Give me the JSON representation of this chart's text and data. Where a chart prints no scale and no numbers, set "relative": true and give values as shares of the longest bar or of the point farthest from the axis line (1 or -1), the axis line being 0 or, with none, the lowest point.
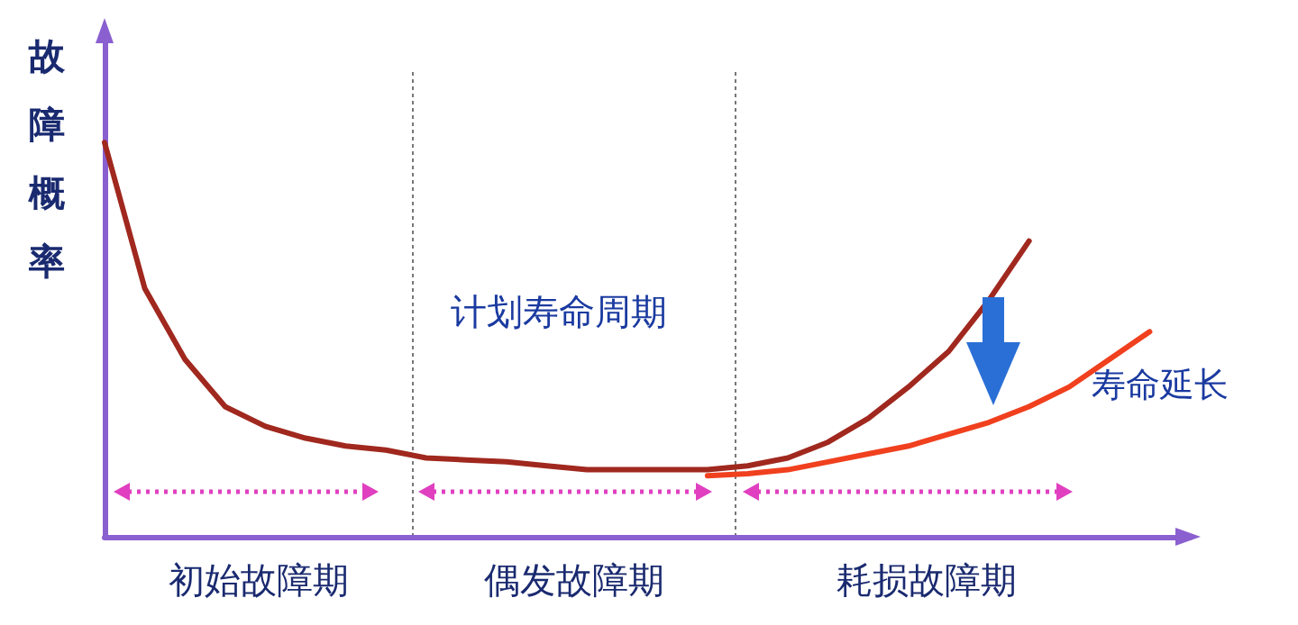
{
  "chart_data": {
    "type": "line",
    "relative": true,
    "ylabel": "故障概率",
    "categories": [
      null,
      null,
      null,
      null,
      null,
      null,
      null,
      null,
      null,
      null,
      null,
      null,
      null,
      null,
      null,
      null,
      null,
      null,
      null,
      null,
      null,
      null,
      null,
      null,
      null,
      null,
      null,
      null
    ],
    "series": [
      {
        "color": "#a0281e",
        "values": [
          1.0,
          0.63,
          0.45,
          0.33,
          0.28,
          0.25,
          0.23,
          0.22,
          0.2,
          0.195,
          0.19,
          0.18,
          0.17,
          0.17,
          0.17,
          0.17,
          0.18,
          0.2,
          0.24,
          0.3,
          0.38,
          0.47,
          0.6,
          0.75,
          null,
          null,
          null,
          null
        ]
      },
      {
        "name": "寿命延长",
        "color": "#f0401e",
        "values": [
          null,
          null,
          null,
          null,
          null,
          null,
          null,
          null,
          null,
          null,
          null,
          null,
          null,
          null,
          null,
          0.155,
          0.16,
          0.17,
          0.19,
          0.21,
          0.23,
          0.26,
          0.29,
          0.33,
          0.38,
          0.45,
          0.52,
          null
        ]
      }
    ],
    "annotations": [
      "计划寿命周期",
      "初始故障期",
      "偶发故障期",
      "耗损故障期"
    ],
    "grid": false,
    "legend": false,
    "marker": "none",
    "line_style": "solid"
  }
}
